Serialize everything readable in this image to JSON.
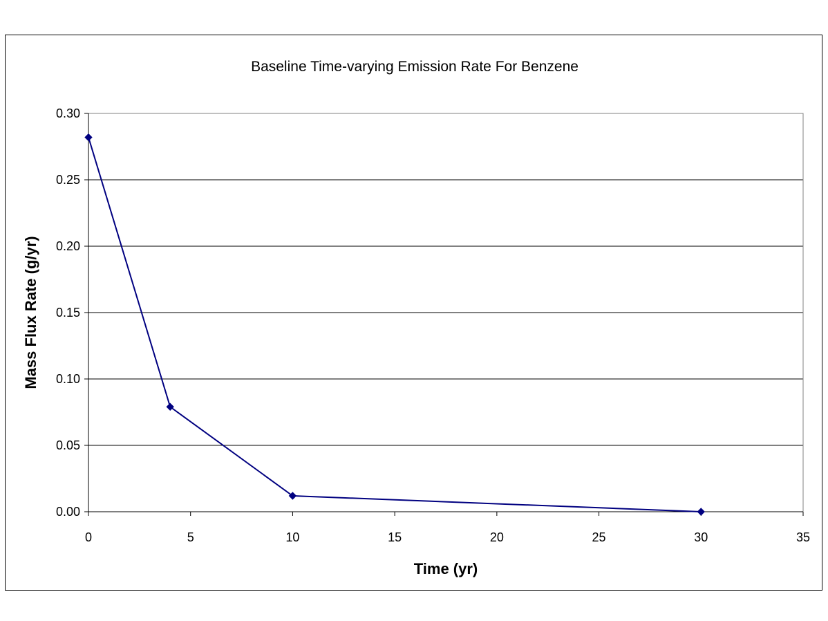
{
  "chart_data": {
    "type": "line",
    "title": "Baseline Time-varying Emission Rate For Benzene",
    "xlabel": "Time (yr)",
    "ylabel": "Mass Flux Rate (g/yr)",
    "xlim": [
      0,
      35
    ],
    "ylim": [
      0,
      0.3
    ],
    "xticks": [
      "0",
      "5",
      "10",
      "15",
      "20",
      "25",
      "30",
      "35"
    ],
    "yticks": [
      "0.00",
      "0.05",
      "0.10",
      "0.15",
      "0.20",
      "0.25",
      "0.30"
    ],
    "grid": true,
    "legend": "none",
    "series": [
      {
        "color": "#000080",
        "x": [
          0,
          4,
          10,
          30
        ],
        "y": [
          0.282,
          0.079,
          0.012,
          0.0
        ]
      }
    ]
  }
}
